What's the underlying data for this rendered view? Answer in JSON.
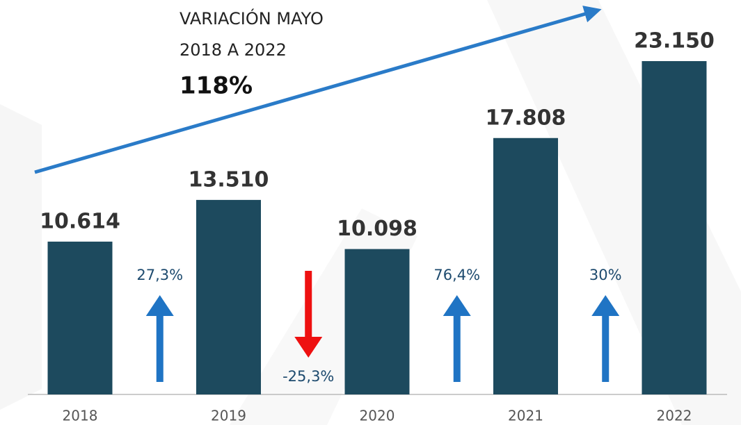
{
  "chart_data": {
    "type": "bar",
    "categories": [
      "2018",
      "2019",
      "2020",
      "2021",
      "2022"
    ],
    "values": [
      10614,
      13510,
      10098,
      17808,
      23150
    ],
    "value_labels": [
      "10.614",
      "13.510",
      "10.098",
      "17.808",
      "23.150"
    ],
    "color": "#1d4a5e",
    "changes": [
      {
        "value": 27.3,
        "label": "27,3%"
      },
      {
        "value": -25.3,
        "label": "-25,3%"
      },
      {
        "value": 76.4,
        "label": "76,4%"
      },
      {
        "value": 30,
        "label": "30%"
      }
    ],
    "up_color": "#1f74c4",
    "down_color": "#ee1111",
    "annotation": {
      "lines": [
        "VARIACIÓN MAYO",
        "2018 A 2022"
      ],
      "total_change": {
        "value": 118,
        "label": "118%"
      }
    }
  }
}
